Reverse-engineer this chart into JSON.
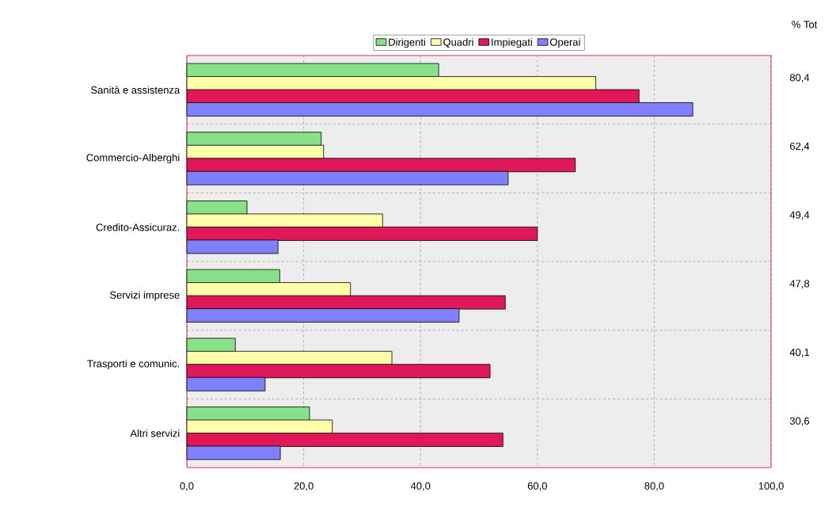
{
  "chart_data": {
    "type": "bar",
    "orientation": "horizontal",
    "categories": [
      "Sanità e assistenza",
      "Commercio-Alberghi",
      "Credito-Assicuraz.",
      "Servizi imprese",
      "Trasporti e comunic.",
      "Altri servizi"
    ],
    "series": [
      {
        "name": "Dirigenti",
        "color": "#88e088",
        "values": [
          43.1,
          23.0,
          10.3,
          15.9,
          8.3,
          21.0
        ]
      },
      {
        "name": "Quadri",
        "color": "#ffffaa",
        "values": [
          70.0,
          23.4,
          33.5,
          28.0,
          35.1,
          24.9
        ]
      },
      {
        "name": "Impiegati",
        "color": "#e0185a",
        "values": [
          77.4,
          66.5,
          60.0,
          54.5,
          51.9,
          54.1
        ]
      },
      {
        "name": "Operai",
        "color": "#8080ff",
        "values": [
          86.6,
          55.0,
          15.6,
          46.6,
          13.4,
          16.0
        ]
      }
    ],
    "xlim": [
      0,
      100
    ],
    "xticks": [
      {
        "value": 0,
        "label": "0,0"
      },
      {
        "value": 20,
        "label": "20,0"
      },
      {
        "value": 40,
        "label": "40,0"
      },
      {
        "value": 60,
        "label": "60,0"
      },
      {
        "value": 80,
        "label": "80,0"
      },
      {
        "value": 100,
        "label": "100,0"
      }
    ],
    "grid": true,
    "legend": "top",
    "annotations": [
      "% Tot",
      "80,4",
      "62,4",
      "49,4",
      "47,8",
      "40,1",
      "30,6"
    ]
  }
}
